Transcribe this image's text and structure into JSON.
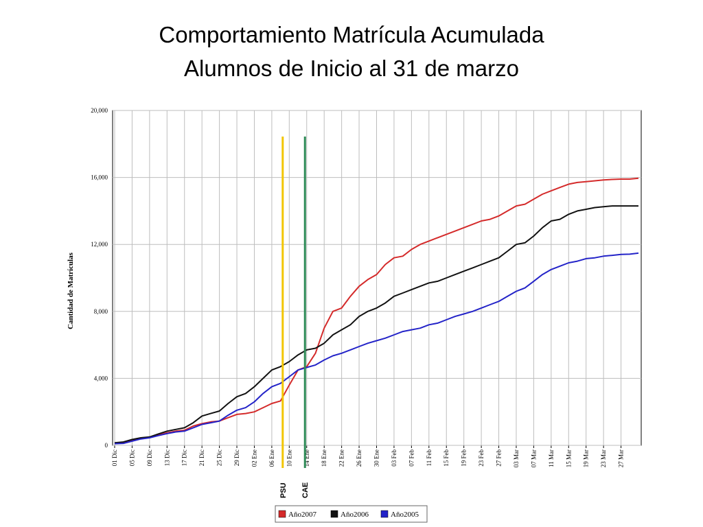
{
  "slide": {
    "title_line1": "Comportamiento Matrícula Acumulada",
    "title_line2": "Alumnos de Inicio al 31 de marzo"
  },
  "chart_data": {
    "type": "line",
    "ylabel": "Cantidad de Matrículas",
    "xlabel": "",
    "ylim": [
      0,
      20000
    ],
    "y_ticks": [
      "0",
      "4,000",
      "8,000",
      "12,000",
      "16,000",
      "20,000"
    ],
    "y_tick_values": [
      0,
      4000,
      8000,
      12000,
      16000,
      20000
    ],
    "x_range": [
      0,
      120
    ],
    "x_tick_labels": [
      "01 Dic",
      "05 Dic",
      "09 Dic",
      "13 Dic",
      "17 Dic",
      "21 Dic",
      "25 Dic",
      "29 Dic",
      "02 Ene",
      "06 Ene",
      "10 Ene",
      "14 Ene",
      "18 Ene",
      "22 Ene",
      "26 Ene",
      "30 Ene",
      "03 Feb",
      "07 Feb",
      "11 Feb",
      "15 Feb",
      "19 Feb",
      "23 Feb",
      "27 Feb",
      "03 Mar",
      "07 Mar",
      "11 Mar",
      "15 Mar",
      "19 Mar",
      "23 Mar",
      "27 Mar"
    ],
    "x_tick_days": [
      0,
      4,
      8,
      12,
      16,
      20,
      24,
      28,
      32,
      36,
      40,
      44,
      48,
      52,
      56,
      60,
      64,
      68,
      72,
      76,
      80,
      84,
      88,
      92,
      96,
      100,
      104,
      108,
      112,
      116
    ],
    "grid": true,
    "legend_position": "bottom",
    "markers": [
      {
        "label": "PSU",
        "day": 38.5,
        "color": "#f2c500"
      },
      {
        "label": "CAE",
        "day": 43.6,
        "color": "#2e8b57"
      }
    ],
    "series": [
      {
        "name": "Año2007",
        "color": "#d42a2a",
        "x": [
          0,
          2,
          4,
          6,
          8,
          10,
          12,
          14,
          16,
          18,
          20,
          22,
          24,
          26,
          28,
          30,
          32,
          34,
          36,
          38,
          40,
          42,
          44,
          46,
          48,
          50,
          52,
          54,
          56,
          58,
          60,
          62,
          64,
          66,
          68,
          70,
          72,
          74,
          76,
          78,
          80,
          82,
          84,
          86,
          88,
          90,
          92,
          94,
          96,
          98,
          100,
          102,
          104,
          106,
          108,
          110,
          112,
          114,
          116,
          118,
          120
        ],
        "y": [
          100,
          150,
          300,
          420,
          480,
          620,
          750,
          850,
          900,
          1150,
          1300,
          1400,
          1450,
          1650,
          1850,
          1900,
          2000,
          2250,
          2500,
          2650,
          3600,
          4500,
          4700,
          5500,
          7000,
          8000,
          8200,
          8900,
          9500,
          9900,
          10200,
          10800,
          11200,
          11300,
          11700,
          12000,
          12200,
          12400,
          12600,
          12800,
          13000,
          13200,
          13400,
          13500,
          13700,
          14000,
          14300,
          14400,
          14700,
          15000,
          15200,
          15400,
          15600,
          15700,
          15750,
          15800,
          15850,
          15880,
          15900,
          15900,
          15950
        ]
      },
      {
        "name": "Año2006",
        "color": "#111111",
        "x": [
          0,
          2,
          4,
          6,
          8,
          10,
          12,
          14,
          16,
          18,
          20,
          22,
          24,
          26,
          28,
          30,
          32,
          34,
          36,
          38,
          40,
          42,
          44,
          46,
          48,
          50,
          52,
          54,
          56,
          58,
          60,
          62,
          64,
          66,
          68,
          70,
          72,
          74,
          76,
          78,
          80,
          82,
          84,
          86,
          88,
          90,
          92,
          94,
          96,
          98,
          100,
          102,
          104,
          106,
          108,
          110,
          112,
          114,
          116,
          118,
          120
        ],
        "y": [
          150,
          200,
          350,
          450,
          500,
          680,
          850,
          950,
          1050,
          1350,
          1750,
          1900,
          2050,
          2500,
          2900,
          3100,
          3500,
          4000,
          4500,
          4700,
          5000,
          5400,
          5700,
          5800,
          6100,
          6600,
          6900,
          7200,
          7700,
          8000,
          8200,
          8500,
          8900,
          9100,
          9300,
          9500,
          9700,
          9800,
          10000,
          10200,
          10400,
          10600,
          10800,
          11000,
          11200,
          11600,
          12000,
          12100,
          12500,
          13000,
          13400,
          13500,
          13800,
          14000,
          14100,
          14200,
          14250,
          14300,
          14300,
          14300,
          14300
        ]
      },
      {
        "name": "Año2005",
        "color": "#2323c8",
        "x": [
          0,
          2,
          4,
          6,
          8,
          10,
          12,
          14,
          16,
          18,
          20,
          22,
          24,
          26,
          28,
          30,
          32,
          34,
          36,
          38,
          40,
          42,
          44,
          46,
          48,
          50,
          52,
          54,
          56,
          58,
          60,
          62,
          64,
          66,
          68,
          70,
          72,
          74,
          76,
          78,
          80,
          82,
          84,
          86,
          88,
          90,
          92,
          94,
          96,
          98,
          100,
          102,
          104,
          106,
          108,
          110,
          112,
          114,
          116,
          118,
          120
        ],
        "y": [
          100,
          120,
          250,
          380,
          450,
          580,
          700,
          800,
          850,
          1050,
          1250,
          1350,
          1450,
          1800,
          2100,
          2250,
          2600,
          3100,
          3500,
          3700,
          4100,
          4500,
          4650,
          4800,
          5100,
          5350,
          5500,
          5700,
          5900,
          6100,
          6250,
          6400,
          6600,
          6800,
          6900,
          7000,
          7200,
          7300,
          7500,
          7700,
          7850,
          8000,
          8200,
          8400,
          8600,
          8900,
          9200,
          9400,
          9800,
          10200,
          10500,
          10700,
          10900,
          11000,
          11150,
          11200,
          11300,
          11350,
          11400,
          11420,
          11480
        ]
      }
    ]
  }
}
